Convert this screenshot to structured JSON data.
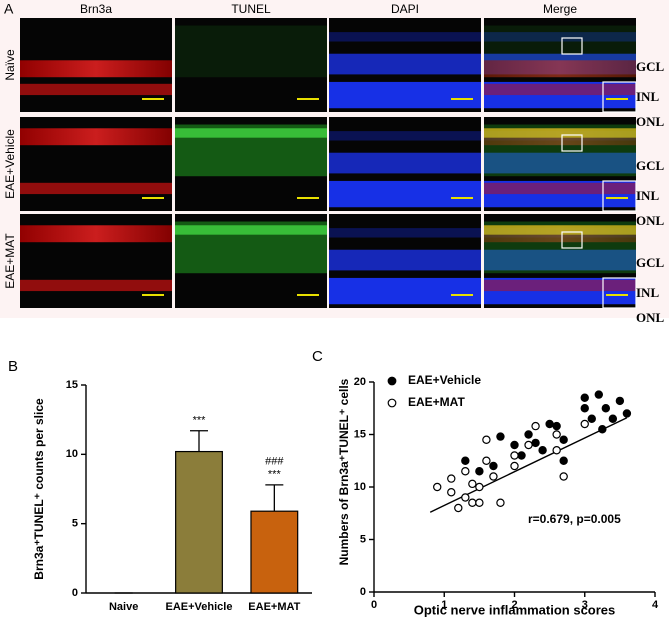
{
  "panel_a": {
    "letter": "A",
    "columns": [
      "Brn3a",
      "TUNEL",
      "DAPI",
      "Merge"
    ],
    "rows": [
      "Naïve",
      "EAE+Vehicle",
      "EAE+MAT"
    ],
    "layers": [
      "GCL",
      "INL",
      "ONL"
    ]
  },
  "chart_data": [
    {
      "type": "bar",
      "letter": "B",
      "ylabel": "Brn3a⁺TUNEL⁺ counts per slice",
      "categories": [
        "Naive",
        "EAE+Vehicle",
        "EAE+MAT"
      ],
      "values": [
        0,
        10.2,
        5.9
      ],
      "errors": [
        0,
        1.5,
        1.9
      ],
      "colors": [
        "#8b7d3a",
        "#8b7d3a",
        "#c8620e"
      ],
      "significance": [
        null,
        [
          "***"
        ],
        [
          "###",
          "***"
        ]
      ],
      "ylim": [
        0,
        15
      ],
      "yticks": [
        0,
        5,
        10,
        15
      ]
    },
    {
      "type": "scatter",
      "letter": "C",
      "xlabel": "Optic nerve inflammation scores",
      "ylabel": "Numbers of Brn3a⁺TUNEL⁺ cells",
      "annotation": "r=0.679, p=0.005",
      "series": [
        {
          "name": "EAE+Vehicle",
          "color": "#000000",
          "marker": "filled",
          "x": [
            1.3,
            1.5,
            1.7,
            1.8,
            2.0,
            2.1,
            2.2,
            2.3,
            2.4,
            2.5,
            2.6,
            2.7,
            2.7,
            3.0,
            3.0,
            3.1,
            3.2,
            3.25,
            3.3,
            3.4,
            3.5,
            3.6
          ],
          "values": [
            12.5,
            11.5,
            12,
            14.8,
            14,
            13,
            15,
            14.2,
            13.5,
            16,
            15.8,
            14.5,
            12.5,
            17.5,
            18.5,
            16.5,
            18.8,
            15.5,
            17.5,
            16.5,
            18.2,
            17
          ]
        },
        {
          "name": "EAE+MAT",
          "color": "#000000",
          "marker": "open",
          "x": [
            0.9,
            1.1,
            1.1,
            1.2,
            1.3,
            1.3,
            1.4,
            1.4,
            1.5,
            1.5,
            1.6,
            1.6,
            1.7,
            1.8,
            2.0,
            2.0,
            2.2,
            2.3,
            2.6,
            2.6,
            2.7,
            3.0
          ],
          "values": [
            10,
            9.5,
            10.8,
            8,
            9,
            11.5,
            10.3,
            8.5,
            10,
            8.5,
            12.5,
            14.5,
            11,
            8.5,
            13,
            12,
            14,
            15.8,
            15,
            13.5,
            11,
            16
          ]
        }
      ],
      "trendline": {
        "x": [
          0.8,
          3.6
        ],
        "y": [
          7.6,
          16.6
        ]
      },
      "xlim": [
        0,
        4
      ],
      "xticks": [
        0,
        1,
        2,
        3,
        4
      ],
      "ylim": [
        0,
        20
      ],
      "yticks": [
        0,
        5,
        10,
        15,
        20
      ]
    }
  ]
}
